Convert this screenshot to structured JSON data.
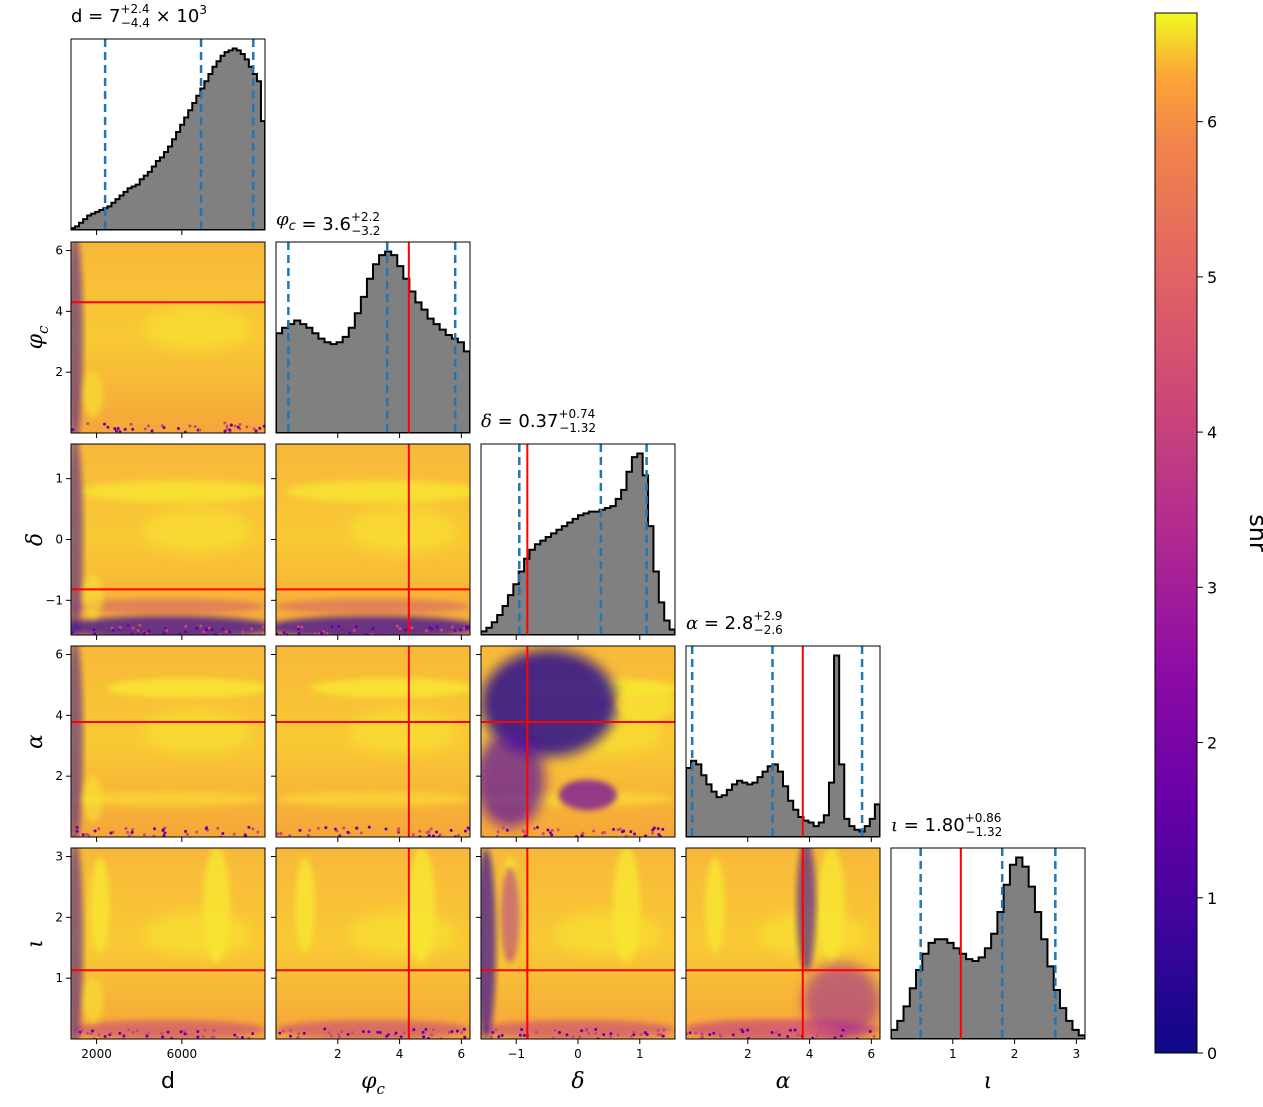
{
  "chart_data": {
    "type": "corner-plot",
    "parameters": [
      {
        "key": "d",
        "label": "d",
        "symbol": "d",
        "range": [
          800,
          9900
        ],
        "ticks": [
          2000,
          6000
        ],
        "tick_labels": [
          "2000",
          "6000"
        ],
        "truth": null
      },
      {
        "key": "phic",
        "label": "φc",
        "symbol": "φ",
        "sub": "c",
        "range": [
          0,
          6.28
        ],
        "ticks": [
          2,
          4,
          6
        ],
        "tick_labels": [
          "2",
          "4",
          "6"
        ],
        "truth": 4.3
      },
      {
        "key": "delta",
        "label": "δ",
        "symbol": "δ",
        "range": [
          -1.57,
          1.57
        ],
        "ticks": [
          -1,
          0,
          1
        ],
        "tick_labels": [
          "−1",
          "0",
          "1"
        ],
        "truth": -0.82
      },
      {
        "key": "alpha",
        "label": "α",
        "symbol": "α",
        "range": [
          0,
          6.28
        ],
        "ticks": [
          2,
          4,
          6
        ],
        "tick_labels": [
          "2",
          "4",
          "6"
        ],
        "truth": 3.78
      },
      {
        "key": "iota",
        "label": "ι",
        "symbol": "ι",
        "range": [
          0,
          3.14
        ],
        "ticks": [
          1,
          2,
          3
        ],
        "tick_labels": [
          "1",
          "2",
          "3"
        ],
        "truth": 1.13
      }
    ],
    "diagonal_titles": [
      {
        "prefix": "d = 7",
        "sup": "+2.4",
        "sub": "−4.4",
        "suffix": " × 10",
        "exp": "3"
      },
      {
        "prefix": " = 3.6",
        "sup": "+2.2",
        "sub": "−3.2",
        "suffix": "",
        "exp": ""
      },
      {
        "prefix": " = 0.37",
        "sup": "+0.74",
        "sub": "−1.32",
        "suffix": "",
        "exp": ""
      },
      {
        "prefix": " = 2.8",
        "sup": "+2.9",
        "sub": "−2.6",
        "suffix": "",
        "exp": ""
      },
      {
        "prefix": " = 1.80",
        "sup": "+0.86",
        "sub": "−1.32",
        "suffix": "",
        "exp": ""
      }
    ],
    "quantiles": [
      [
        2400,
        6900,
        9350
      ],
      [
        0.4,
        3.6,
        5.8
      ],
      [
        -0.95,
        0.37,
        1.11
      ],
      [
        0.2,
        2.8,
        5.7
      ],
      [
        0.48,
        1.8,
        2.66
      ]
    ],
    "histograms": [
      [
        0.01,
        0.02,
        0.04,
        0.06,
        0.08,
        0.09,
        0.1,
        0.11,
        0.12,
        0.13,
        0.15,
        0.17,
        0.19,
        0.21,
        0.23,
        0.24,
        0.25,
        0.28,
        0.3,
        0.32,
        0.35,
        0.38,
        0.4,
        0.43,
        0.46,
        0.5,
        0.54,
        0.58,
        0.62,
        0.66,
        0.7,
        0.74,
        0.78,
        0.82,
        0.86,
        0.9,
        0.93,
        0.96,
        0.98,
        0.99,
        1.0,
        0.99,
        0.97,
        0.94,
        0.9,
        0.86,
        0.82,
        0.6
      ],
      [
        0.55,
        0.58,
        0.6,
        0.62,
        0.6,
        0.58,
        0.55,
        0.52,
        0.5,
        0.49,
        0.5,
        0.53,
        0.58,
        0.66,
        0.75,
        0.85,
        0.93,
        0.98,
        1.0,
        0.98,
        0.92,
        0.85,
        0.78,
        0.72,
        0.68,
        0.63,
        0.6,
        0.57,
        0.54,
        0.52,
        0.5,
        0.45
      ],
      [
        0.02,
        0.04,
        0.07,
        0.11,
        0.16,
        0.22,
        0.28,
        0.35,
        0.42,
        0.47,
        0.5,
        0.52,
        0.54,
        0.56,
        0.58,
        0.6,
        0.62,
        0.64,
        0.66,
        0.67,
        0.68,
        0.68,
        0.69,
        0.7,
        0.71,
        0.75,
        0.8,
        0.9,
        0.98,
        1.0,
        0.88,
        0.6,
        0.35,
        0.18,
        0.08,
        0.03
      ],
      [
        0.38,
        0.42,
        0.4,
        0.34,
        0.29,
        0.25,
        0.22,
        0.23,
        0.26,
        0.29,
        0.31,
        0.3,
        0.29,
        0.3,
        0.33,
        0.36,
        0.39,
        0.4,
        0.36,
        0.28,
        0.2,
        0.15,
        0.11,
        0.09,
        0.08,
        0.06,
        0.08,
        0.12,
        0.3,
        1.0,
        0.4,
        0.1,
        0.06,
        0.04,
        0.03,
        0.06,
        0.1,
        0.18
      ],
      [
        0.05,
        0.1,
        0.18,
        0.28,
        0.38,
        0.47,
        0.53,
        0.55,
        0.55,
        0.53,
        0.5,
        0.47,
        0.44,
        0.43,
        0.45,
        0.5,
        0.58,
        0.7,
        0.85,
        0.96,
        1.0,
        0.95,
        0.84,
        0.7,
        0.55,
        0.4,
        0.27,
        0.17,
        0.1,
        0.05,
        0.02
      ]
    ],
    "colorbar": {
      "label": "snr",
      "range": [
        0,
        6.7
      ],
      "ticks": [
        0,
        1,
        2,
        3,
        4,
        5,
        6
      ],
      "tick_labels": [
        "0",
        "1",
        "2",
        "3",
        "4",
        "5",
        "6"
      ],
      "colormap": "plasma"
    },
    "colors": {
      "histogram_fill": "#808080",
      "histogram_edge": "#000000",
      "quantile_line": "#1f77b4",
      "truth_line": "#ff0000"
    }
  }
}
